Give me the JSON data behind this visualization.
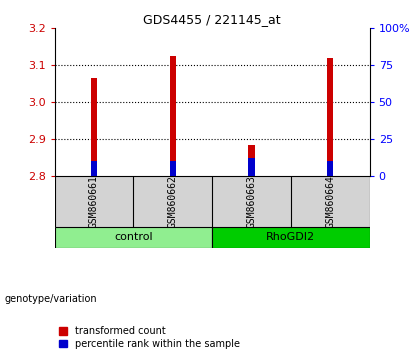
{
  "title": "GDS4455 / 221145_at",
  "samples": [
    "GSM860661",
    "GSM860662",
    "GSM860663",
    "GSM860664"
  ],
  "groups": [
    "control",
    "control",
    "RhoGDI2",
    "RhoGDI2"
  ],
  "group_labels": [
    "control",
    "RhoGDI2"
  ],
  "group_colors": [
    "#90EE90",
    "#00CC00"
  ],
  "transformed_counts": [
    3.065,
    3.125,
    2.885,
    3.12
  ],
  "percentile_ranks_pct": [
    10,
    10,
    12,
    10
  ],
  "bar_base": 2.8,
  "ylim": [
    2.8,
    3.2
  ],
  "yticks": [
    2.8,
    2.9,
    3.0,
    3.1,
    3.2
  ],
  "right_yticks": [
    0,
    25,
    50,
    75,
    100
  ],
  "right_ylim": [
    0,
    100
  ],
  "red_color": "#CC0000",
  "blue_color": "#0000CC",
  "sample_bg": "#D3D3D3",
  "legend_red": "transformed count",
  "legend_blue": "percentile rank within the sample",
  "genotype_label": "genotype/variation",
  "bar_width": 0.08
}
